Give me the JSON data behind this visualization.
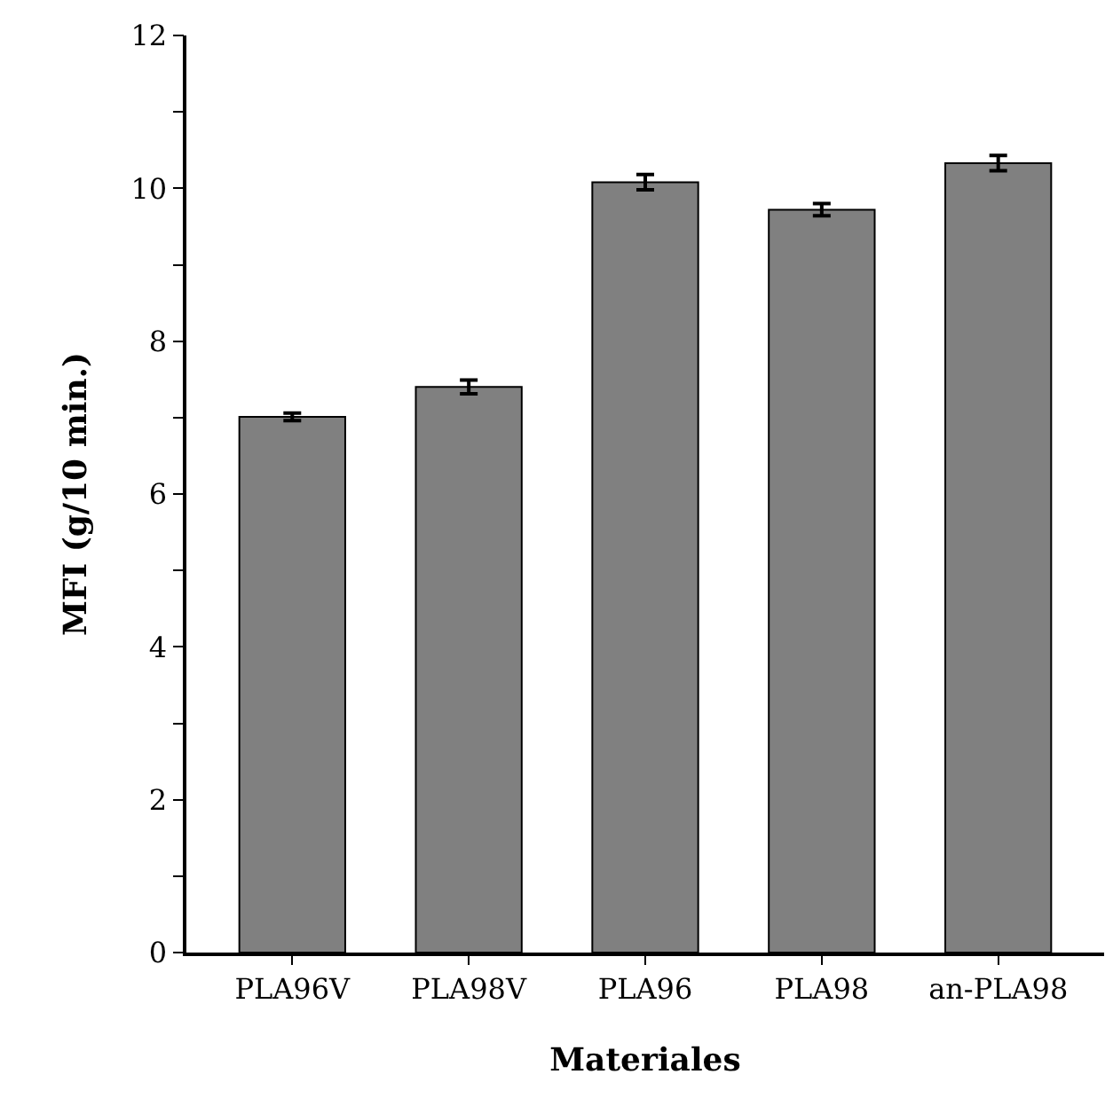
{
  "chart_data": {
    "type": "bar",
    "xlabel": "Materiales",
    "ylabel": "MFI (g/10 min.)",
    "categories": [
      "PLA96V",
      "PLA98V",
      "PLA96",
      "PLA98",
      "an-PLA98"
    ],
    "values": [
      7.01,
      7.4,
      10.08,
      9.72,
      10.33
    ],
    "errors": [
      0.05,
      0.09,
      0.1,
      0.08,
      0.1
    ],
    "color": "#808080",
    "ylim": [
      0,
      12
    ],
    "yticks": [
      0,
      {
        "value": 1,
        "label": null
      },
      2,
      {
        "value": 3,
        "label": null
      },
      4,
      {
        "value": 5,
        "label": null
      },
      6,
      {
        "value": 7,
        "label": null
      },
      8,
      {
        "value": 9,
        "label": null
      },
      10,
      {
        "value": 11,
        "label": null
      },
      12
    ],
    "grid": false,
    "legend": false
  }
}
